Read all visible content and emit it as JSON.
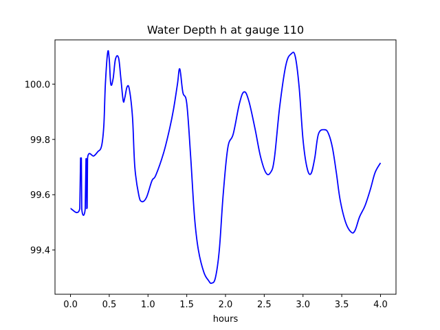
{
  "chart_data": {
    "type": "line",
    "title": "Water Depth h at gauge 110",
    "xlabel": "hours",
    "ylabel": "",
    "xlim": [
      -0.2,
      4.2
    ],
    "ylim": [
      99.24,
      100.16
    ],
    "xticks": [
      0.0,
      0.5,
      1.0,
      1.5,
      2.0,
      2.5,
      3.0,
      3.5,
      4.0
    ],
    "xtick_labels": [
      "0.0",
      "0.5",
      "1.0",
      "1.5",
      "2.0",
      "2.5",
      "3.0",
      "3.5",
      "4.0"
    ],
    "yticks": [
      99.4,
      99.6,
      99.8,
      100.0
    ],
    "ytick_labels": [
      "99.4",
      "99.6",
      "99.8",
      "100.0"
    ],
    "grid": false,
    "series": [
      {
        "color": "#0000ff",
        "x": [
          0.0,
          0.12,
          0.13,
          0.14,
          0.145,
          0.19,
          0.2,
          0.205,
          0.21,
          0.215,
          0.22,
          0.3,
          0.35,
          0.4,
          0.43,
          0.45,
          0.48,
          0.5,
          0.52,
          0.55,
          0.58,
          0.62,
          0.65,
          0.68,
          0.7,
          0.73,
          0.76,
          0.8,
          0.83,
          0.88,
          0.92,
          0.98,
          1.05,
          1.1,
          1.2,
          1.28,
          1.33,
          1.38,
          1.41,
          1.45,
          1.5,
          1.55,
          1.6,
          1.65,
          1.72,
          1.78,
          1.82,
          1.87,
          1.92,
          1.97,
          2.03,
          2.1,
          2.18,
          2.24,
          2.3,
          2.38,
          2.45,
          2.52,
          2.58,
          2.63,
          2.7,
          2.78,
          2.85,
          2.9,
          2.95,
          3.0,
          3.05,
          3.1,
          3.15,
          3.2,
          3.28,
          3.33,
          3.38,
          3.43,
          3.48,
          3.55,
          3.62,
          3.67,
          3.73,
          3.8,
          3.87,
          3.93,
          4.0
        ],
        "values": [
          99.55,
          99.55,
          99.733,
          99.733,
          99.55,
          99.55,
          99.73,
          99.73,
          99.55,
          99.553,
          99.733,
          99.74,
          99.755,
          99.775,
          99.85,
          100.0,
          100.115,
          100.09,
          100.0,
          100.02,
          100.09,
          100.095,
          100.02,
          99.94,
          99.95,
          99.99,
          99.98,
          99.88,
          99.7,
          99.6,
          99.575,
          99.59,
          99.65,
          99.67,
          99.75,
          99.84,
          99.91,
          100.0,
          100.055,
          99.97,
          99.93,
          99.74,
          99.52,
          99.4,
          99.32,
          99.29,
          99.28,
          99.3,
          99.4,
          99.6,
          99.77,
          99.82,
          99.93,
          99.972,
          99.94,
          99.84,
          99.74,
          99.68,
          99.68,
          99.73,
          99.92,
          100.07,
          100.11,
          100.1,
          99.99,
          99.8,
          99.7,
          99.675,
          99.73,
          99.82,
          99.835,
          99.82,
          99.77,
          99.68,
          99.58,
          99.5,
          99.465,
          99.47,
          99.52,
          99.56,
          99.62,
          99.68,
          99.715
        ]
      }
    ]
  }
}
